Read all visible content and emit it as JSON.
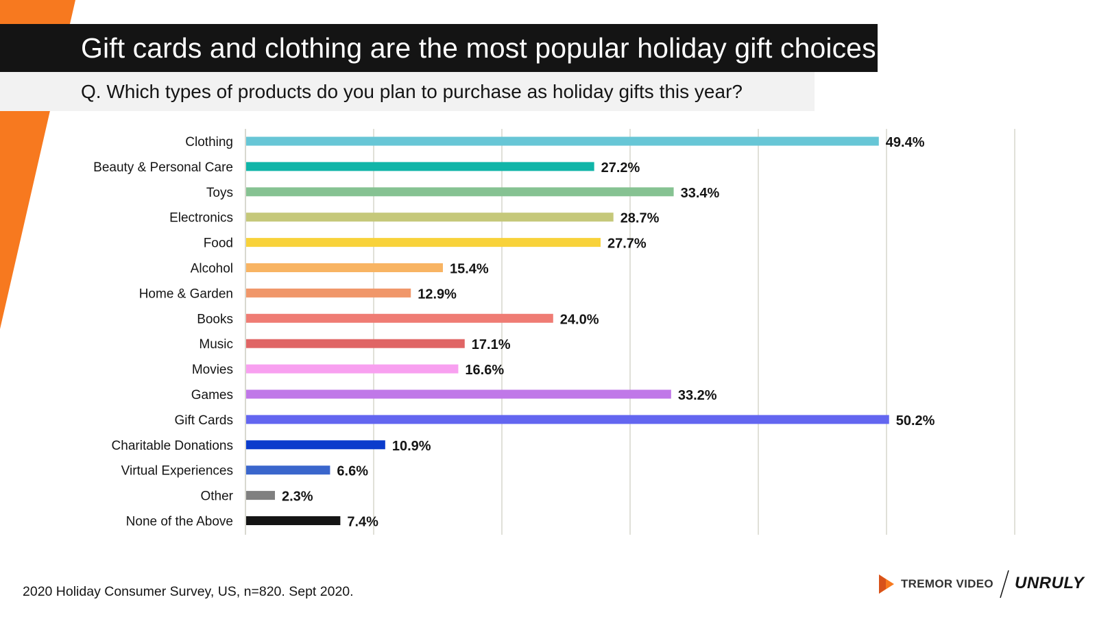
{
  "header": {
    "title": "Gift cards and clothing are the most popular holiday gift choices",
    "subtitle": "Q. Which types of products do you plan to purchase as holiday gifts this year?"
  },
  "chart_data": {
    "type": "bar",
    "orientation": "horizontal",
    "categories": [
      "Clothing",
      "Beauty & Personal Care",
      "Toys",
      "Electronics",
      "Food",
      "Alcohol",
      "Home & Garden",
      "Books",
      "Music",
      "Movies",
      "Games",
      "Gift Cards",
      "Charitable Donations",
      "Virtual Experiences",
      "Other",
      "None of the Above"
    ],
    "values": [
      49.4,
      27.2,
      33.4,
      28.7,
      27.7,
      15.4,
      12.9,
      24.0,
      17.1,
      16.6,
      33.2,
      50.2,
      10.9,
      6.6,
      2.3,
      7.4
    ],
    "value_labels": [
      "49.4%",
      "27.2%",
      "33.4%",
      "28.7%",
      "27.7%",
      "15.4%",
      "12.9%",
      "24.0%",
      "17.1%",
      "16.6%",
      "33.2%",
      "50.2%",
      "10.9%",
      "6.6%",
      "2.3%",
      "7.4%"
    ],
    "colors": [
      "#67c6d6",
      "#10b5a8",
      "#86c292",
      "#c5c87a",
      "#f8d23a",
      "#f8b463",
      "#f0976a",
      "#ef7c74",
      "#e06565",
      "#f8a0f0",
      "#c078e8",
      "#6366f0",
      "#0b3ccc",
      "#3a66cc",
      "#808080",
      "#141414"
    ],
    "xlim": [
      0,
      60
    ],
    "grid": true,
    "legend": "none"
  },
  "footer": {
    "source": "2020 Holiday Consumer Survey, US, n=820. Sept 2020.",
    "brand_tremor": "TREMOR VIDEO",
    "brand_unruly": "UNRULY",
    "accent_color": "#f7791f"
  }
}
